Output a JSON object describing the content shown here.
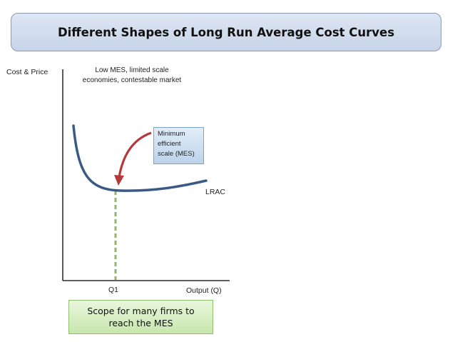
{
  "title": "Different Shapes of Long Run Average Cost Curves",
  "diagram": {
    "y_axis_label": "Cost & Price",
    "x_axis_label": "Output (Q)",
    "top_note_lines": [
      "Low MES, limited scale",
      "economies, contestable market"
    ],
    "curve_label": "LRAC",
    "q_marker_label": "Q1",
    "callout_lines": [
      "Minimum",
      "efficient",
      "scale (MES)"
    ],
    "bottom_box_text": "Scope for many firms to reach the MES"
  },
  "colors": {
    "curve": "#3a5a86",
    "axis": "#000000",
    "arrow": "#b5393b",
    "dashed_line": "#8fb66a",
    "title_border": "#8a9bb5",
    "callout_fill": "#cfe0f1",
    "scope_fill": "#d6edc1"
  },
  "icons": [
    "curved-arrow-icon"
  ]
}
